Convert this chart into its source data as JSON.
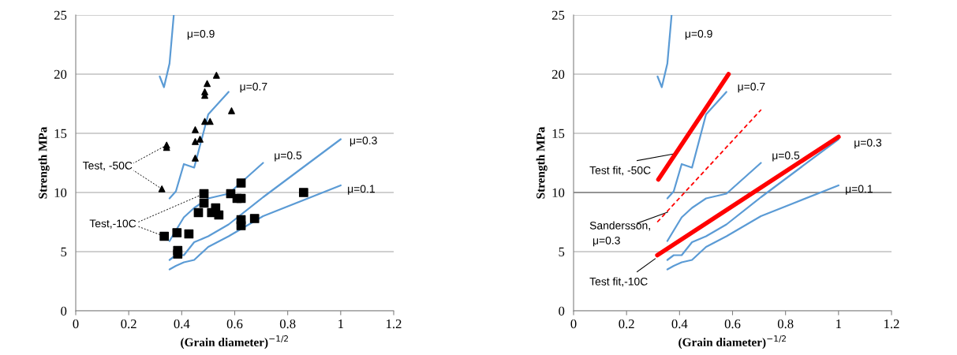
{
  "chart_data": [
    {
      "type": "line",
      "xlabel": "(Grain diameter)$^{−1/2}$",
      "ylabel": "Strength MPa",
      "xlim": [
        0,
        1.2
      ],
      "ylim": [
        0,
        25
      ],
      "xticks": [
        0,
        0.2,
        0.4,
        0.6,
        0.8,
        1,
        1.2
      ],
      "yticks": [
        0,
        5,
        10,
        15,
        20,
        25
      ],
      "grid": "y",
      "series": [
        {
          "name": "μ=0.9",
          "color": "#5b9bd5",
          "x": [
            0.317,
            0.333,
            0.354,
            0.37
          ],
          "values": [
            19.8,
            18.9,
            20.9,
            25
          ]
        },
        {
          "name": "μ=0.7",
          "color": "#5b9bd5",
          "x": [
            0.354,
            0.378,
            0.408,
            0.447,
            0.5,
            0.577
          ],
          "values": [
            9.5,
            10.1,
            12.4,
            12.1,
            16.6,
            18.5
          ]
        },
        {
          "name": "μ=0.5",
          "color": "#5b9bd5",
          "x": [
            0.354,
            0.408,
            0.447,
            0.5,
            0.577,
            0.707
          ],
          "values": [
            5.9,
            7.9,
            8.7,
            9.5,
            9.9,
            12.5
          ]
        },
        {
          "name": "μ=0.3",
          "color": "#5b9bd5",
          "x": [
            0.354,
            0.378,
            0.408,
            0.447,
            0.5,
            0.577,
            0.707,
            1.0
          ],
          "values": [
            4.3,
            4.7,
            4.7,
            5.8,
            6.3,
            7.3,
            9.6,
            14.5
          ]
        },
        {
          "name": "μ=0.1",
          "color": "#5b9bd5",
          "x": [
            0.354,
            0.378,
            0.408,
            0.447,
            0.5,
            0.577,
            0.707,
            1.0
          ],
          "values": [
            3.5,
            3.8,
            4.1,
            4.3,
            5.4,
            6.3,
            8.0,
            10.6
          ]
        },
        {
          "name": "Test, -50C",
          "type": "scatter",
          "marker": "triangle",
          "color": "#000000",
          "x": [
            0.531,
            0.496,
            0.487,
            0.487,
            0.588,
            0.487,
            0.507,
            0.451,
            0.451,
            0.469,
            0.343,
            0.343,
            0.451,
            0.325
          ],
          "values": [
            19.9,
            19.2,
            18.5,
            18.2,
            16.9,
            16.0,
            16.0,
            15.3,
            14.3,
            14.5,
            14.0,
            13.8,
            12.9,
            10.3
          ]
        },
        {
          "name": "Test,-10C",
          "type": "scatter",
          "marker": "square",
          "color": "#000000",
          "x": [
            0.624,
            0.484,
            0.585,
            0.609,
            0.624,
            0.484,
            0.463,
            0.513,
            0.528,
            0.54,
            0.624,
            0.624,
            0.675,
            0.86,
            0.334,
            0.382,
            0.427,
            0.385,
            0.385
          ],
          "values": [
            10.8,
            9.9,
            9.9,
            9.5,
            9.5,
            9.1,
            8.3,
            8.3,
            8.7,
            8.1,
            7.7,
            7.2,
            7.8,
            10.0,
            6.3,
            6.6,
            6.5,
            5.1,
            4.8
          ]
        }
      ]
    },
    {
      "type": "line",
      "xlabel": "(Grain diameter)$^{−1/2}$",
      "ylabel": "Strength MPa",
      "xlim": [
        0,
        1.2
      ],
      "ylim": [
        0,
        25
      ],
      "xticks": [
        0,
        0.2,
        0.4,
        0.6,
        0.8,
        1,
        1.2
      ],
      "yticks": [
        0,
        5,
        10,
        15,
        20,
        25
      ],
      "grid": "y",
      "ref_lines": [
        {
          "axis": "y",
          "value": 10,
          "label": null,
          "color": "#808080"
        }
      ],
      "series": [
        {
          "name": "μ=0.9",
          "color": "#5b9bd5",
          "x": [
            0.317,
            0.333,
            0.354,
            0.37
          ],
          "values": [
            19.8,
            18.9,
            20.9,
            25
          ]
        },
        {
          "name": "μ=0.7",
          "color": "#5b9bd5",
          "x": [
            0.354,
            0.378,
            0.408,
            0.447,
            0.5,
            0.577
          ],
          "values": [
            9.5,
            10.1,
            12.4,
            12.1,
            16.6,
            18.5
          ]
        },
        {
          "name": "μ=0.5",
          "color": "#5b9bd5",
          "x": [
            0.354,
            0.408,
            0.447,
            0.5,
            0.577,
            0.707
          ],
          "values": [
            5.9,
            7.9,
            8.7,
            9.5,
            9.9,
            12.5
          ]
        },
        {
          "name": "μ=0.3",
          "color": "#5b9bd5",
          "x": [
            0.354,
            0.378,
            0.408,
            0.447,
            0.5,
            0.577,
            0.707,
            1.0
          ],
          "values": [
            4.3,
            4.7,
            4.7,
            5.8,
            6.3,
            7.3,
            9.6,
            14.5
          ]
        },
        {
          "name": "μ=0.1",
          "color": "#5b9bd5",
          "x": [
            0.354,
            0.378,
            0.408,
            0.447,
            0.5,
            0.577,
            0.707,
            1.0
          ],
          "values": [
            3.5,
            3.8,
            4.1,
            4.3,
            5.4,
            6.3,
            8.0,
            10.6
          ]
        },
        {
          "name": "Test fit, -50C",
          "color": "#ff0000",
          "x": [
            0.32,
            0.585
          ],
          "values": [
            11.1,
            20.0
          ]
        },
        {
          "name": "Sandersson,\n μ=0.3",
          "color": "#ff0000",
          "line_style": "dashed",
          "x": [
            0.316,
            0.708
          ],
          "values": [
            7.5,
            17.0
          ]
        },
        {
          "name": "Test fit,-10C",
          "color": "#ff0000",
          "x": [
            0.316,
            1.0
          ],
          "values": [
            4.7,
            14.7
          ]
        }
      ]
    }
  ]
}
